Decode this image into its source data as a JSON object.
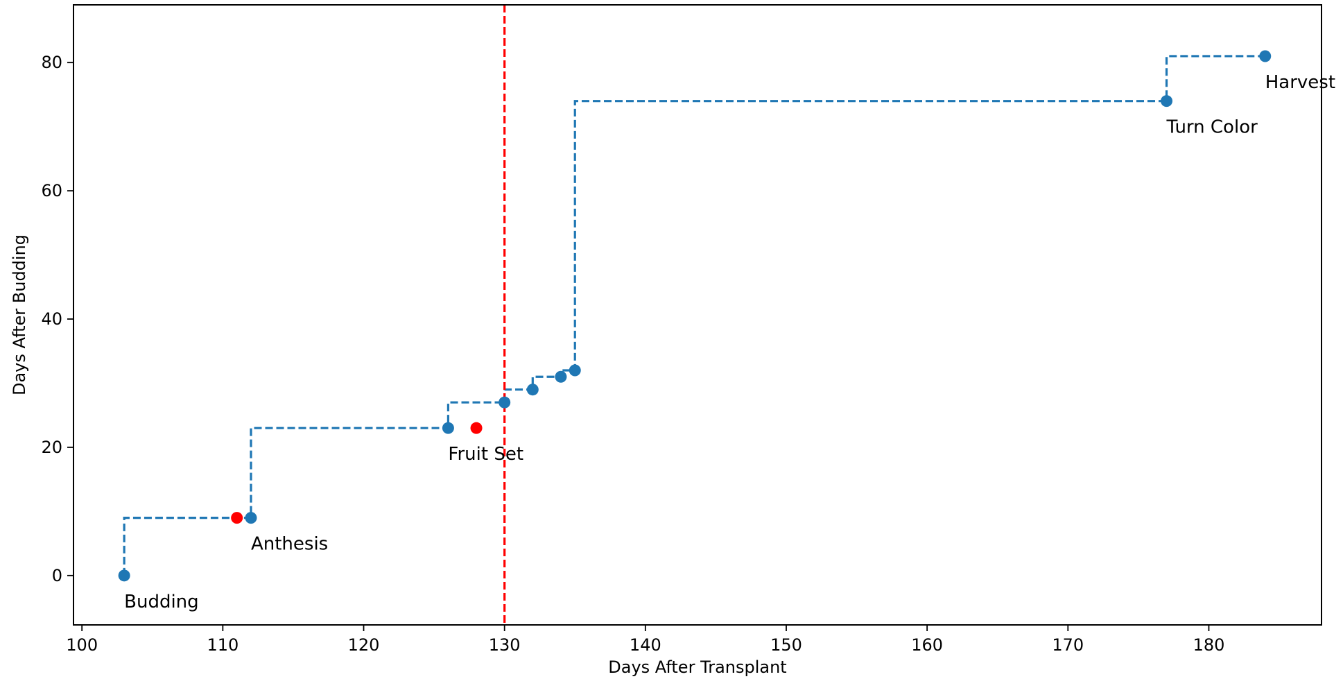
{
  "chart_data": {
    "type": "scatter",
    "title": "",
    "xlabel": "Days After Transplant",
    "ylabel": "Days After Budding",
    "xlim": [
      99.4,
      188.0
    ],
    "ylim": [
      -7.7,
      89.0
    ],
    "xticks": [
      100,
      110,
      120,
      130,
      140,
      150,
      160,
      170,
      180
    ],
    "yticks": [
      0,
      20,
      40,
      60,
      80
    ],
    "grid": false,
    "legend": "none",
    "series": [
      {
        "style": "step-post dashed line with markers",
        "color": "#1f77b4",
        "points": [
          {
            "x": 103,
            "y": 0
          },
          {
            "x": 112,
            "y": 9
          },
          {
            "x": 126,
            "y": 23
          },
          {
            "x": 130,
            "y": 27
          },
          {
            "x": 132,
            "y": 29
          },
          {
            "x": 134,
            "y": 31
          },
          {
            "x": 135,
            "y": 32
          },
          {
            "x": 177,
            "y": 74
          },
          {
            "x": 184,
            "y": 81
          }
        ]
      },
      {
        "style": "markers",
        "color": "#ff0000",
        "points": [
          {
            "x": 111,
            "y": 9
          },
          {
            "x": 128,
            "y": 23
          }
        ]
      }
    ],
    "annotations": [
      {
        "text": "Budding",
        "x": 103,
        "y": 0
      },
      {
        "text": "Anthesis",
        "x": 112,
        "y": 9
      },
      {
        "text": "Fruit Set",
        "x": 126,
        "y": 23
      },
      {
        "text": "Turn Color",
        "x": 177,
        "y": 74
      },
      {
        "text": "Harvest",
        "x": 184,
        "y": 81
      }
    ],
    "vertical_lines": [
      {
        "x": 130,
        "color": "#ff0000",
        "style": "dashed"
      }
    ]
  }
}
